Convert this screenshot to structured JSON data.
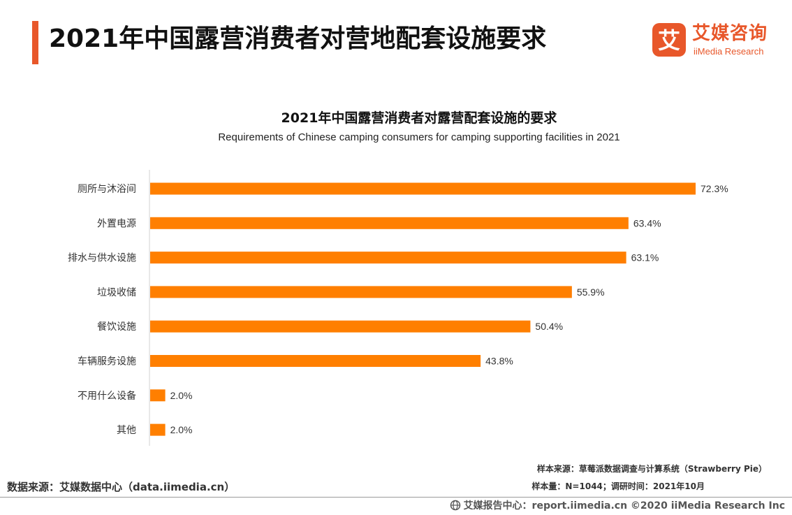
{
  "header": {
    "title": "2021年中国露营消费者对营地配套设施要求",
    "accent_color": "#e8572a"
  },
  "brand": {
    "logo_glyph": "艾",
    "name_cn": "艾媒咨询",
    "name_en": "iiMedia Research",
    "color": "#e8572a"
  },
  "chart_data": {
    "type": "bar",
    "orientation": "horizontal",
    "title": "2021年中国露营消费者对露营配套设施的要求",
    "subtitle": "Requirements of Chinese camping consumers for camping supporting facilities in 2021",
    "categories": [
      "厕所与沐浴间",
      "外置电源",
      "排水与供水设施",
      "垃圾收储",
      "餐饮设施",
      "车辆服务设施",
      "不用什么设备",
      "其他"
    ],
    "values": [
      72.3,
      63.4,
      63.1,
      55.9,
      50.4,
      43.8,
      2.0,
      2.0
    ],
    "value_labels": [
      "72.3%",
      "63.4%",
      "63.1%",
      "55.9%",
      "50.4%",
      "43.8%",
      "2.0%",
      "2.0%"
    ],
    "unit": "%",
    "xlim": [
      0,
      72.3
    ],
    "grid": false,
    "legend": "none",
    "bar_color": "#ff7f00"
  },
  "footer": {
    "data_source": "数据来源：艾媒数据中心（data.iimedia.cn）",
    "sample_source": "样本来源：草莓派数据调查与计算系统（Strawberry Pie）",
    "sample_size": "样本量：N=1044；调研时间：2021年10月",
    "copyright": "艾媒报告中心：report.iimedia.cn   ©2020  iiMedia Research  Inc"
  }
}
